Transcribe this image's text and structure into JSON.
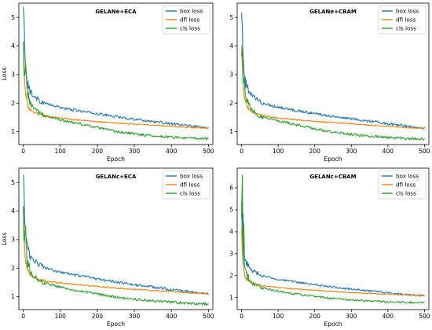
{
  "figure": {
    "chart_data": [
      {
        "type": "line",
        "title": "GELANe+ECA",
        "xlabel": "Epoch",
        "ylabel": "Loss",
        "xlim": [
          -12,
          512
        ],
        "ylim": [
          0.55,
          5.5
        ],
        "xticks": [
          "0",
          "100",
          "200",
          "300",
          "400",
          "500"
        ],
        "yticks": [
          "1",
          "2",
          "3",
          "4",
          "5"
        ],
        "legend_position": "top-right",
        "x": [
          0,
          2,
          4,
          6,
          8,
          10,
          15,
          20,
          25,
          30,
          40,
          50,
          60,
          75,
          100,
          125,
          150,
          175,
          200,
          225,
          250,
          275,
          300,
          325,
          350,
          375,
          400,
          425,
          450,
          475,
          500
        ],
        "series": [
          {
            "name": "box loss",
            "color": "#1f77b4",
            "values": [
              5.32,
              5.05,
              4.05,
              3.3,
              2.95,
              2.8,
              2.55,
              2.42,
              2.3,
              2.22,
              2.12,
              2.05,
              1.99,
              1.93,
              1.85,
              1.78,
              1.73,
              1.68,
              1.63,
              1.58,
              1.53,
              1.48,
              1.44,
              1.4,
              1.36,
              1.32,
              1.27,
              1.24,
              1.21,
              1.17,
              1.13
            ]
          },
          {
            "name": "dfl loss",
            "color": "#ff7f0e",
            "values": [
              4.1,
              3.15,
              2.65,
              2.35,
              2.15,
              2.02,
              1.87,
              1.78,
              1.72,
              1.67,
              1.62,
              1.58,
              1.55,
              1.52,
              1.48,
              1.44,
              1.41,
              1.38,
              1.35,
              1.33,
              1.31,
              1.29,
              1.27,
              1.25,
              1.23,
              1.21,
              1.19,
              1.17,
              1.15,
              1.14,
              1.12
            ]
          },
          {
            "name": "cls loss",
            "color": "#2ca02c",
            "values": [
              4.1,
              3.0,
              2.85,
              3.45,
              3.1,
              2.45,
              2.15,
              1.98,
              1.87,
              1.79,
              1.68,
              1.61,
              1.56,
              1.5,
              1.42,
              1.35,
              1.28,
              1.21,
              1.14,
              1.07,
              1.01,
              0.96,
              0.93,
              0.89,
              0.86,
              0.83,
              0.81,
              0.79,
              0.77,
              0.76,
              0.75
            ]
          }
        ]
      },
      {
        "type": "line",
        "title": "GELANe+CBAM",
        "xlabel": "Epoch",
        "ylabel": "",
        "xlim": [
          -12,
          512
        ],
        "ylim": [
          0.55,
          5.5
        ],
        "xticks": [
          "0",
          "100",
          "200",
          "300",
          "400",
          "500"
        ],
        "yticks": [
          "1",
          "2",
          "3",
          "4",
          "5"
        ],
        "legend_position": "top-right",
        "x": [
          0,
          2,
          4,
          6,
          8,
          10,
          15,
          20,
          25,
          30,
          40,
          50,
          60,
          75,
          100,
          125,
          150,
          175,
          200,
          225,
          250,
          275,
          300,
          325,
          350,
          375,
          400,
          425,
          450,
          475,
          500
        ],
        "series": [
          {
            "name": "box loss",
            "color": "#1f77b4",
            "values": [
              5.35,
              4.6,
              3.6,
              3.15,
              2.9,
              2.75,
              2.52,
              2.4,
              2.3,
              2.24,
              2.14,
              2.07,
              2.0,
              1.94,
              1.86,
              1.8,
              1.74,
              1.69,
              1.64,
              1.59,
              1.54,
              1.49,
              1.45,
              1.41,
              1.37,
              1.33,
              1.28,
              1.24,
              1.2,
              1.16,
              1.13
            ]
          },
          {
            "name": "dfl loss",
            "color": "#ff7f0e",
            "values": [
              4.1,
              3.3,
              2.7,
              2.4,
              2.2,
              2.06,
              1.9,
              1.8,
              1.73,
              1.69,
              1.63,
              1.59,
              1.56,
              1.53,
              1.48,
              1.45,
              1.42,
              1.39,
              1.36,
              1.34,
              1.32,
              1.3,
              1.28,
              1.25,
              1.23,
              1.21,
              1.19,
              1.17,
              1.15,
              1.13,
              1.12
            ]
          },
          {
            "name": "cls loss",
            "color": "#2ca02c",
            "values": [
              3.8,
              4.05,
              2.75,
              2.9,
              2.7,
              2.35,
              2.08,
              1.93,
              1.82,
              1.74,
              1.64,
              1.57,
              1.52,
              1.46,
              1.38,
              1.31,
              1.24,
              1.17,
              1.1,
              1.04,
              0.99,
              0.95,
              0.91,
              0.87,
              0.84,
              0.82,
              0.8,
              0.78,
              0.76,
              0.75,
              0.74
            ]
          }
        ]
      },
      {
        "type": "line",
        "title": "GELANc+ECA",
        "xlabel": "Epoch",
        "ylabel": "Loss",
        "xlim": [
          -12,
          512
        ],
        "ylim": [
          0.55,
          5.5
        ],
        "xticks": [
          "0",
          "100",
          "200",
          "300",
          "400",
          "500"
        ],
        "yticks": [
          "1",
          "2",
          "3",
          "4",
          "5"
        ],
        "legend_position": "top-right",
        "x": [
          0,
          2,
          4,
          6,
          8,
          10,
          15,
          20,
          25,
          30,
          40,
          50,
          60,
          75,
          100,
          125,
          150,
          175,
          200,
          225,
          250,
          275,
          300,
          325,
          350,
          375,
          400,
          425,
          450,
          475,
          500
        ],
        "series": [
          {
            "name": "box loss",
            "color": "#1f77b4",
            "values": [
              5.3,
              4.75,
              3.7,
              3.2,
              2.95,
              2.8,
              2.55,
              2.42,
              2.33,
              2.26,
              2.16,
              2.08,
              2.01,
              1.94,
              1.86,
              1.79,
              1.73,
              1.68,
              1.62,
              1.57,
              1.52,
              1.47,
              1.42,
              1.38,
              1.34,
              1.3,
              1.25,
              1.21,
              1.17,
              1.13,
              1.1
            ]
          },
          {
            "name": "dfl loss",
            "color": "#ff7f0e",
            "values": [
              4.15,
              3.2,
              2.6,
              2.3,
              2.1,
              1.98,
              1.85,
              1.77,
              1.71,
              1.67,
              1.62,
              1.58,
              1.55,
              1.52,
              1.48,
              1.45,
              1.42,
              1.39,
              1.36,
              1.33,
              1.3,
              1.28,
              1.26,
              1.24,
              1.22,
              1.2,
              1.18,
              1.16,
              1.14,
              1.12,
              1.1
            ]
          },
          {
            "name": "cls loss",
            "color": "#2ca02c",
            "values": [
              4.2,
              2.8,
              3.0,
              3.5,
              2.7,
              2.3,
              2.02,
              1.87,
              1.77,
              1.7,
              1.6,
              1.53,
              1.48,
              1.42,
              1.34,
              1.27,
              1.21,
              1.15,
              1.09,
              1.04,
              0.99,
              0.95,
              0.92,
              0.88,
              0.85,
              0.83,
              0.81,
              0.79,
              0.77,
              0.76,
              0.75
            ]
          }
        ]
      },
      {
        "type": "line",
        "title": "GELANc+CBAM",
        "xlabel": "Epoch",
        "ylabel": "",
        "xlim": [
          -12,
          512
        ],
        "ylim": [
          0.45,
          6.9
        ],
        "xticks": [
          "0",
          "100",
          "200",
          "300",
          "400",
          "500"
        ],
        "yticks": [
          "1",
          "2",
          "3",
          "4",
          "5",
          "6"
        ],
        "legend_position": "top-right",
        "x": [
          0,
          2,
          4,
          6,
          8,
          10,
          15,
          20,
          25,
          30,
          40,
          50,
          60,
          75,
          100,
          125,
          150,
          175,
          200,
          225,
          250,
          275,
          300,
          325,
          350,
          375,
          400,
          425,
          450,
          475,
          500
        ],
        "series": [
          {
            "name": "box loss",
            "color": "#1f77b4",
            "values": [
              5.25,
              3.7,
              4.8,
              3.2,
              2.9,
              2.72,
              2.5,
              2.38,
              2.29,
              2.22,
              2.12,
              2.05,
              1.99,
              1.92,
              1.83,
              1.76,
              1.7,
              1.64,
              1.58,
              1.53,
              1.48,
              1.43,
              1.38,
              1.34,
              1.3,
              1.26,
              1.22,
              1.18,
              1.14,
              1.11,
              1.09
            ]
          },
          {
            "name": "dfl loss",
            "color": "#ff7f0e",
            "values": [
              4.1,
              3.1,
              2.55,
              2.25,
              2.07,
              1.95,
              1.82,
              1.74,
              1.69,
              1.65,
              1.6,
              1.56,
              1.53,
              1.5,
              1.46,
              1.42,
              1.39,
              1.36,
              1.33,
              1.3,
              1.28,
              1.25,
              1.23,
              1.21,
              1.19,
              1.17,
              1.15,
              1.13,
              1.11,
              1.1,
              1.09
            ]
          },
          {
            "name": "cls loss",
            "color": "#2ca02c",
            "values": [
              4.5,
              6.55,
              2.6,
              4.4,
              2.6,
              2.2,
              1.95,
              1.82,
              1.72,
              1.65,
              1.55,
              1.48,
              1.43,
              1.37,
              1.29,
              1.22,
              1.16,
              1.1,
              1.05,
              1.0,
              0.96,
              0.92,
              0.89,
              0.86,
              0.84,
              0.82,
              0.8,
              0.79,
              0.78,
              0.77,
              0.76
            ]
          }
        ]
      }
    ]
  }
}
